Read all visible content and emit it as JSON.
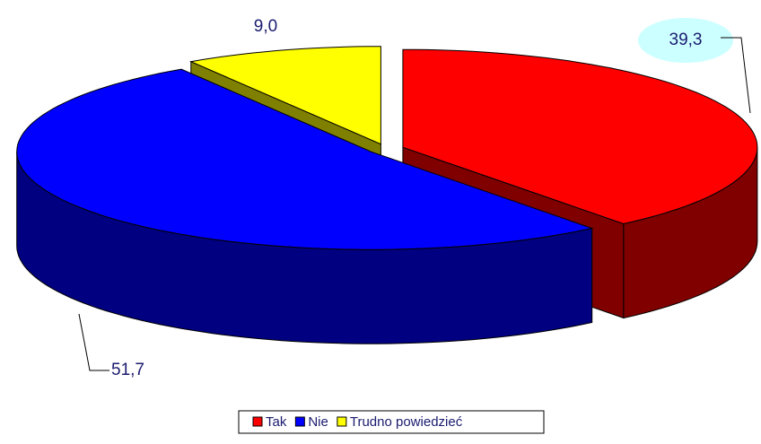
{
  "chart_data": {
    "type": "pie",
    "categories": [
      "Tak",
      "Nie",
      "Trudno powiedzieć"
    ],
    "values": [
      39.3,
      51.7,
      9.0
    ],
    "value_labels": [
      "39,3",
      "51,7",
      "9,0"
    ],
    "colors": [
      "#ff0000",
      "#0000ff",
      "#ffff00"
    ],
    "legend": "bottom"
  }
}
